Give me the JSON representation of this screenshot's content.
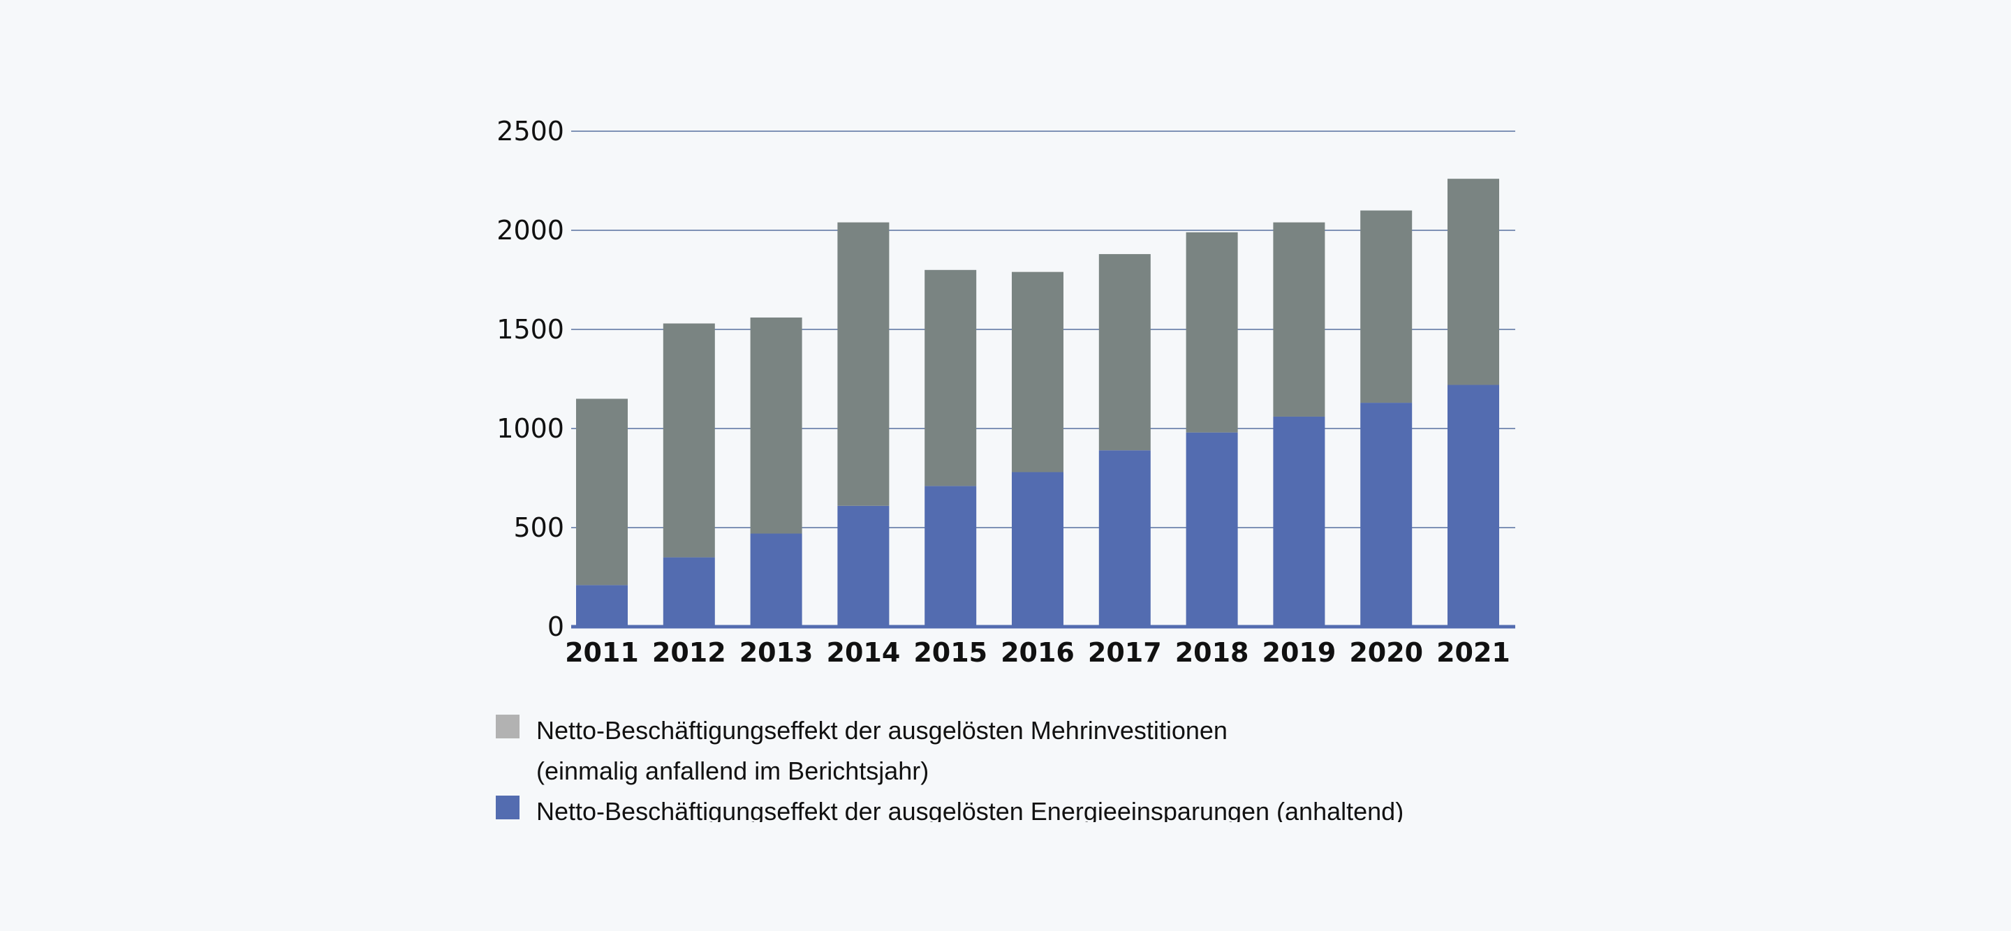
{
  "chart_data": {
    "type": "bar",
    "stacked": true,
    "categories": [
      "2011",
      "2012",
      "2013",
      "2014",
      "2015",
      "2016",
      "2017",
      "2018",
      "2019",
      "2020",
      "2021"
    ],
    "series": [
      {
        "name": "Netto-Beschäftigungseffekt der ausgelösten Energieeinsparungen (anhaltend)",
        "color": "#536cb0",
        "values": [
          210,
          350,
          470,
          610,
          710,
          780,
          890,
          980,
          1060,
          1130,
          1220
        ]
      },
      {
        "name": "Netto-Beschäftigungseffekt der ausgelösten Mehrinvestitionen (einmalig anfallend im Berichtsjahr)",
        "color": "#7a8482",
        "values": [
          940,
          1180,
          1090,
          1430,
          1090,
          1010,
          990,
          1010,
          980,
          970,
          1040
        ]
      }
    ],
    "y_ticks": [
      "0",
      "500",
      "1000",
      "1500",
      "2000",
      "2500"
    ],
    "ylim": [
      0,
      2500
    ],
    "grid": true,
    "legend": {
      "placement": "bottom",
      "items": [
        {
          "color": "#b2b2b2",
          "line1": "Netto-Beschäftigungseffekt der ausgelösten Mehrinvestitionen",
          "line2": "(einmalig anfallend im Berichtsjahr)"
        },
        {
          "color": "#536cb0",
          "line1": "Netto-Beschäftigungseffekt der ausgelösten Energieeinsparungen (anhaltend)"
        }
      ]
    },
    "axis_color": "#536cb0",
    "grid_color": "#7f92b6"
  }
}
